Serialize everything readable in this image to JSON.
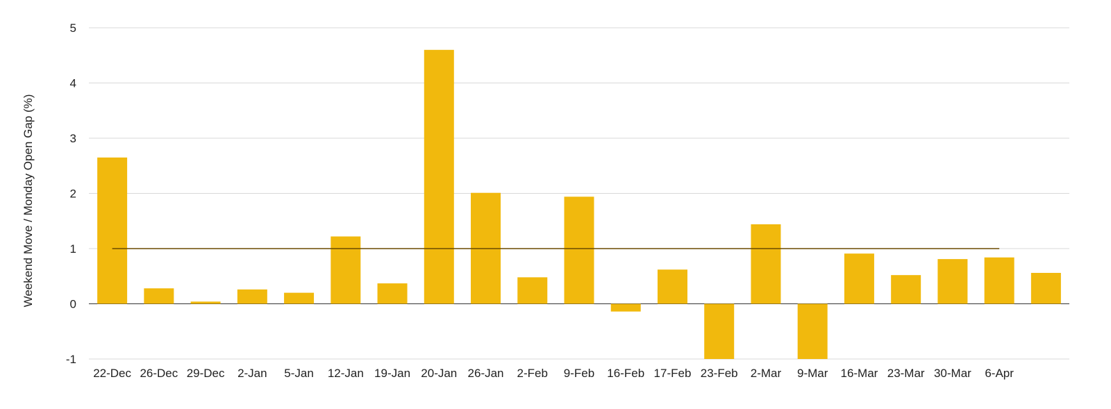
{
  "chart_data": {
    "type": "bar",
    "title": "",
    "xlabel": "",
    "ylabel": "Weekend Move / Monday Open Gap (%)",
    "categories": [
      "22-Dec",
      "26-Dec",
      "29-Dec",
      "2-Jan",
      "5-Jan",
      "12-Jan",
      "19-Jan",
      "20-Jan",
      "26-Jan",
      "2-Feb",
      "9-Feb",
      "16-Feb",
      "17-Feb",
      "23-Feb",
      "2-Mar",
      "9-Mar",
      "16-Mar",
      "23-Mar",
      "30-Mar",
      "6-Apr",
      ""
    ],
    "series": [
      {
        "values": [
          2.65,
          0.28,
          0.04,
          0.26,
          0.2,
          1.22,
          0.37,
          4.6,
          2.01,
          0.48,
          1.94,
          -0.14,
          0.62,
          -1.0,
          1.44,
          -1.0,
          0.91,
          0.52,
          0.81,
          0.84,
          0.56
        ],
        "color": "#F1B90D"
      }
    ],
    "reference_line": {
      "value": 1,
      "from_category": "22-Dec",
      "to_category": "6-Apr",
      "color": "#6B4A00"
    },
    "ylim": [
      -1,
      5
    ],
    "yticks": [
      "5",
      "4",
      "3",
      "2",
      "1",
      "0",
      "-1"
    ],
    "ytick_values": [
      5,
      4,
      3,
      2,
      1,
      0,
      -1
    ],
    "grid": true,
    "legend": "none",
    "colors": {
      "bar": "#F1B90D",
      "grid": "#D9D9D9",
      "zero_line": "#333333",
      "reference": "#6B4A00"
    }
  }
}
